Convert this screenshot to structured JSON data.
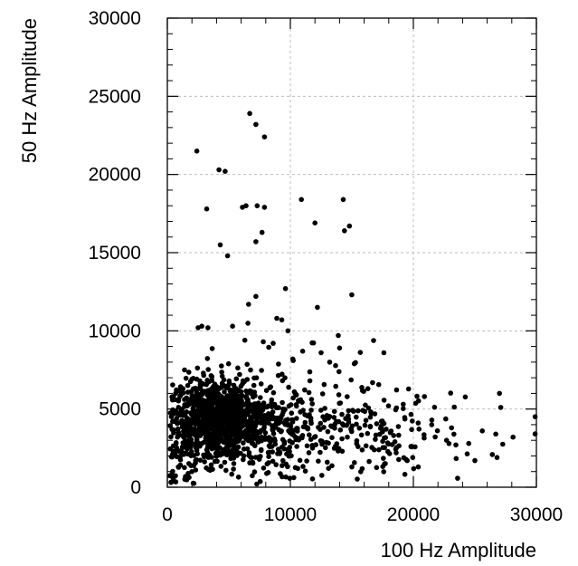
{
  "chart_data": {
    "type": "scatter",
    "title": "",
    "xlabel": "100 Hz Amplitude",
    "ylabel": "50  Hz Amplitude",
    "xlim": [
      0,
      30000
    ],
    "ylim": [
      0,
      30000
    ],
    "x_ticks": [
      "0",
      "10000",
      "20000",
      "30000"
    ],
    "y_ticks": [
      "0",
      "5000",
      "10000",
      "15000",
      "20000",
      "25000",
      "30000"
    ],
    "grid": true,
    "legend": "none",
    "colors": {
      "points": "#000000",
      "grid": "#bdbdbd",
      "frame": "#000000"
    },
    "series": [
      {
        "points": [
          [
            6700,
            23900
          ],
          [
            7200,
            23200
          ],
          [
            7900,
            22400
          ],
          [
            2400,
            21500
          ],
          [
            4200,
            20300
          ],
          [
            4700,
            20200
          ],
          [
            3200,
            17800
          ],
          [
            6100,
            17900
          ],
          [
            6400,
            18000
          ],
          [
            7300,
            18000
          ],
          [
            7900,
            17900
          ],
          [
            10900,
            18400
          ],
          [
            14300,
            18400
          ],
          [
            12000,
            16900
          ],
          [
            14400,
            16400
          ],
          [
            14800,
            16700
          ],
          [
            7700,
            16300
          ],
          [
            7200,
            15700
          ],
          [
            4300,
            15500
          ],
          [
            4900,
            14800
          ],
          [
            9600,
            12700
          ],
          [
            7200,
            12200
          ],
          [
            6600,
            11700
          ],
          [
            12200,
            11500
          ],
          [
            2500,
            10200
          ],
          [
            2800,
            10300
          ],
          [
            3300,
            10200
          ],
          [
            5300,
            10300
          ],
          [
            8900,
            10800
          ],
          [
            9300,
            10700
          ],
          [
            9800,
            10000
          ],
          [
            13900,
            9700
          ],
          [
            6300,
            9400
          ],
          [
            7800,
            9300
          ],
          [
            8600,
            9200
          ],
          [
            11000,
            8700
          ],
          [
            12500,
            8600
          ],
          [
            14000,
            8900
          ],
          [
            17600,
            8600
          ],
          [
            15200,
            7900
          ],
          [
            10200,
            8200
          ],
          [
            13200,
            8000
          ],
          [
            16300,
            6300
          ],
          [
            20900,
            5800
          ],
          [
            27000,
            6000
          ],
          [
            27100,
            5100
          ],
          [
            21500,
            4300
          ],
          [
            23100,
            3800
          ],
          [
            25600,
            3600
          ],
          [
            26700,
            3400
          ],
          [
            28100,
            3200
          ],
          [
            24500,
            2800
          ],
          [
            22700,
            3000
          ],
          [
            25000,
            1700
          ],
          [
            26800,
            1900
          ],
          [
            19800,
            2600
          ],
          [
            18600,
            2200
          ],
          [
            20400,
            1300
          ],
          [
            19500,
            1700
          ],
          [
            17200,
            2400
          ],
          [
            16500,
            3900
          ],
          [
            15500,
            2600
          ],
          [
            14200,
            3100
          ],
          [
            13000,
            1600
          ],
          [
            11800,
            2500
          ],
          [
            10600,
            1200
          ],
          [
            9400,
            1700
          ],
          [
            15000,
            1300
          ],
          [
            2300,
            1100
          ],
          [
            1500,
            600
          ],
          [
            900,
            1300
          ],
          [
            600,
            5600
          ],
          [
            1400,
            7500
          ],
          [
            500,
            4700
          ],
          [
            300,
            300
          ],
          [
            500,
            400
          ]
        ]
      }
    ],
    "cluster_regions": [
      {
        "cx": 4000,
        "cy": 4300,
        "sx": 1700,
        "sy": 1200,
        "n": 820
      },
      {
        "cx": 7500,
        "cy": 3800,
        "sx": 2500,
        "sy": 1400,
        "n": 300
      },
      {
        "cx": 16000,
        "cy": 3500,
        "sx": 4500,
        "sy": 1400,
        "n": 200
      },
      {
        "cx": 11000,
        "cy": 5500,
        "sx": 3000,
        "sy": 2000,
        "n": 60
      },
      {
        "cx": 1500,
        "cy": 2500,
        "sx": 900,
        "sy": 1500,
        "n": 80
      }
    ]
  }
}
